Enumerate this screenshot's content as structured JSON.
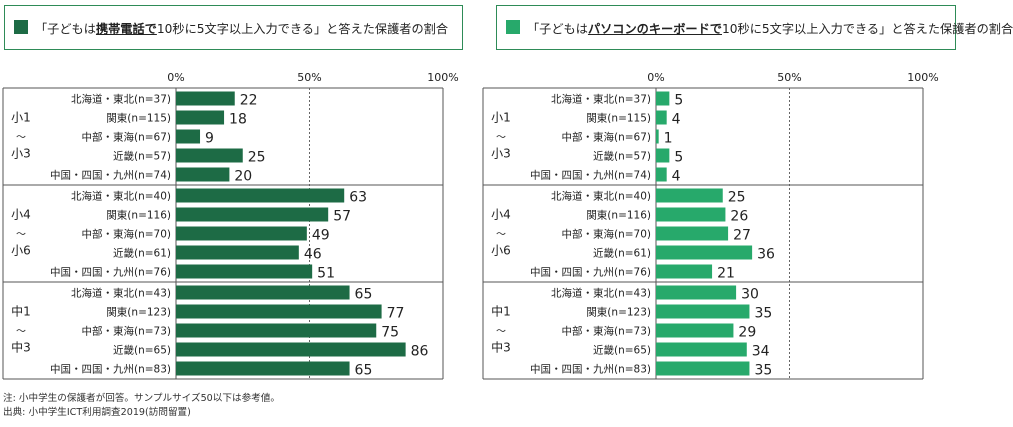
{
  "colors": {
    "left": "#1d6b45",
    "right": "#27a96b",
    "frame": "#2e8b57"
  },
  "left_title": {
    "pre": "「子どもは",
    "em": "携帯電話で",
    "post": "10秒に5文字以上入力できる」と答えた保護者の割合"
  },
  "right_title": {
    "pre": "「子どもは",
    "em": "パソコンのキーボードで",
    "post": "10秒に5文字以上入力できる」と答えた保護者の割合"
  },
  "notes": {
    "line1": "注: 小中学生の保護者が回答。サンプルサイズ50以下は参考値。",
    "line2": "出典: 小中学生ICT利用調査2019(訪問留置)"
  },
  "chart_data": [
    {
      "type": "bar",
      "orientation": "horizontal",
      "xlim": [
        0,
        100
      ],
      "x_ticks": [
        "0%",
        "50%",
        "100%"
      ],
      "groups": [
        {
          "label_top": "小1",
          "label_sep": "〜",
          "label_bottom": "小3",
          "categories": [
            "北海道・東北(n=37)",
            "関東(n=115)",
            "中部・東海(n=67)",
            "近畿(n=57)",
            "中国・四国・九州(n=74)"
          ],
          "values": [
            22,
            18,
            9,
            25,
            20
          ]
        },
        {
          "label_top": "小4",
          "label_sep": "〜",
          "label_bottom": "小6",
          "categories": [
            "北海道・東北(n=40)",
            "関東(n=116)",
            "中部・東海(n=70)",
            "近畿(n=61)",
            "中国・四国・九州(n=76)"
          ],
          "values": [
            63,
            57,
            49,
            46,
            51
          ]
        },
        {
          "label_top": "中1",
          "label_sep": "〜",
          "label_bottom": "中3",
          "categories": [
            "北海道・東北(n=43)",
            "関東(n=123)",
            "中部・東海(n=73)",
            "近畿(n=65)",
            "中国・四国・九州(n=83)"
          ],
          "values": [
            65,
            77,
            75,
            86,
            65
          ]
        }
      ]
    },
    {
      "type": "bar",
      "orientation": "horizontal",
      "xlim": [
        0,
        100
      ],
      "x_ticks": [
        "0%",
        "50%",
        "100%"
      ],
      "groups": [
        {
          "label_top": "小1",
          "label_sep": "〜",
          "label_bottom": "小3",
          "categories": [
            "北海道・東北(n=37)",
            "関東(n=115)",
            "中部・東海(n=67)",
            "近畿(n=57)",
            "中国・四国・九州(n=74)"
          ],
          "values": [
            5,
            4,
            1,
            5,
            4
          ]
        },
        {
          "label_top": "小4",
          "label_sep": "〜",
          "label_bottom": "小6",
          "categories": [
            "北海道・東北(n=40)",
            "関東(n=116)",
            "中部・東海(n=70)",
            "近畿(n=61)",
            "中国・四国・九州(n=76)"
          ],
          "values": [
            25,
            26,
            27,
            36,
            21
          ]
        },
        {
          "label_top": "中1",
          "label_sep": "〜",
          "label_bottom": "中3",
          "categories": [
            "北海道・東北(n=43)",
            "関東(n=123)",
            "中部・東海(n=73)",
            "近畿(n=65)",
            "中国・四国・九州(n=83)"
          ],
          "values": [
            30,
            35,
            29,
            34,
            35
          ]
        }
      ]
    }
  ]
}
